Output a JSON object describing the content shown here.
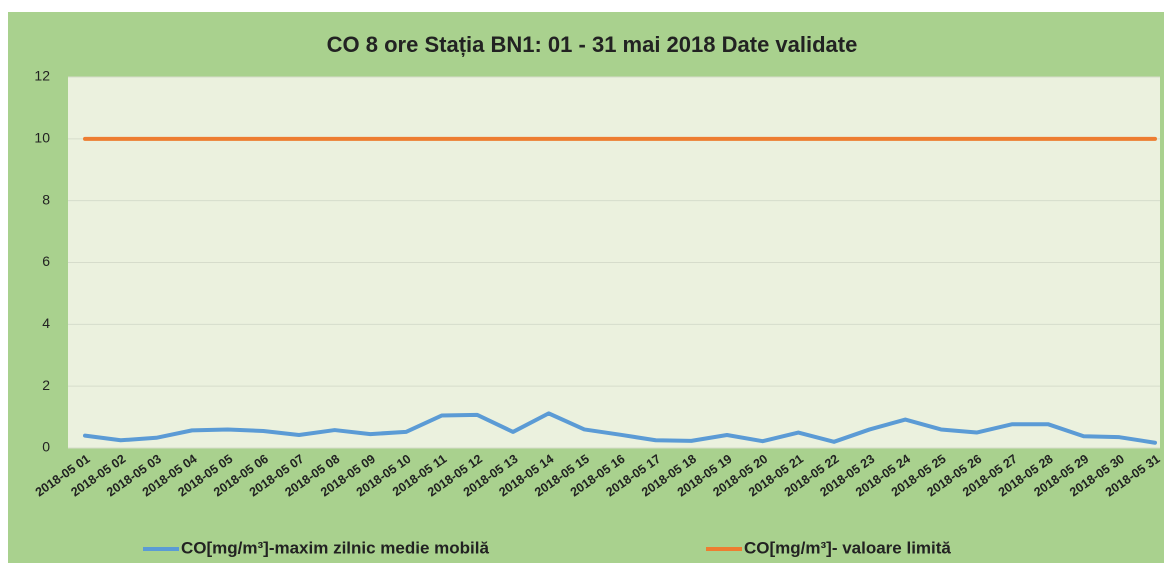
{
  "chart_data": {
    "type": "line",
    "title": "CO 8 ore Stația BN1: 01 - 31 mai 2018 Date validate",
    "categories": [
      "2018-05 01",
      "2018-05 02",
      "2018-05 03",
      "2018-05 04",
      "2018-05 05",
      "2018-05 06",
      "2018-05 07",
      "2018-05 08",
      "2018-05 09",
      "2018-05 10",
      "2018-05 11",
      "2018-05 12",
      "2018-05 13",
      "2018-05 14",
      "2018-05 15",
      "2018-05 16",
      "2018-05 17",
      "2018-05 18",
      "2018-05 19",
      "2018-05 20",
      "2018-05 21",
      "2018-05 22",
      "2018-05 23",
      "2018-05 24",
      "2018-05 25",
      "2018-05 26",
      "2018-05 27",
      "2018-05 28",
      "2018-05 29",
      "2018-05 30",
      "2018-05 31"
    ],
    "series": [
      {
        "name": "CO[mg/m³]-maxim zilnic medie mobilă",
        "color": "#5b9bd5",
        "values": [
          0.4,
          0.25,
          0.33,
          0.57,
          0.6,
          0.55,
          0.42,
          0.58,
          0.45,
          0.52,
          1.05,
          1.07,
          0.52,
          1.12,
          0.6,
          0.43,
          0.25,
          0.23,
          0.42,
          0.22,
          0.5,
          0.2,
          0.6,
          0.92,
          0.6,
          0.5,
          0.77,
          0.77,
          0.38,
          0.35,
          0.17
        ]
      },
      {
        "name": "CO[mg/m³]- valoare limită",
        "color": "#ed7d31",
        "values": [
          10,
          10,
          10,
          10,
          10,
          10,
          10,
          10,
          10,
          10,
          10,
          10,
          10,
          10,
          10,
          10,
          10,
          10,
          10,
          10,
          10,
          10,
          10,
          10,
          10,
          10,
          10,
          10,
          10,
          10,
          10
        ]
      }
    ],
    "ylim": [
      0,
      12
    ],
    "yticks": [
      0,
      2,
      4,
      6,
      8,
      10,
      12
    ],
    "grid": true
  }
}
